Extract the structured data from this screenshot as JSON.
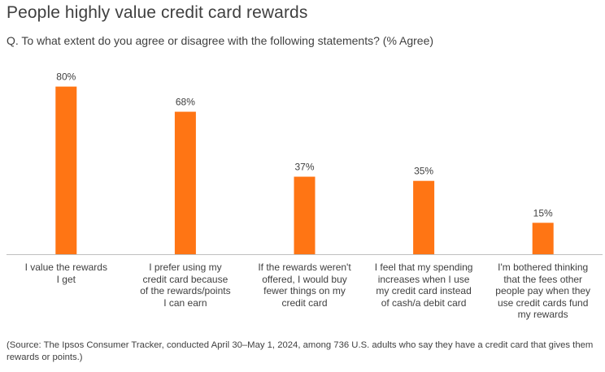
{
  "title": "People highly  value credit card rewards",
  "subtitle": "Q. To what extent do you agree or disagree with the following statements?  (% Agree)",
  "source": "(Source: The Ipsos Consumer Tracker, conducted April 30–May 1, 2024, among 736 U.S. adults who say they have a credit card that gives them rewards or points.)",
  "colors": {
    "bar": "#FF7514",
    "axis": "#bfbfbf",
    "text": "#404040"
  },
  "chart_data": {
    "type": "bar",
    "title": "People highly  value credit card rewards",
    "subtitle": "Q. To what extent do you agree or disagree with the following statements?  (% Agree)",
    "categories": [
      "I value the rewards I get",
      "I prefer using my credit card because of the rewards/points I can earn",
      "If the rewards weren't offered, I would buy fewer things on my credit card",
      "I feel that my spending increases when I use my credit card instead of cash/a debit card",
      "I'm bothered thinking that the fees other people pay when they use credit cards fund my rewards"
    ],
    "category_label_lines": [
      [
        "I value the rewards",
        "I get"
      ],
      [
        "I prefer using my",
        "credit card because",
        "of the rewards/points",
        "I can earn"
      ],
      [
        "If the rewards weren't",
        "offered, I would buy",
        "fewer things on my",
        "credit card"
      ],
      [
        "I feel that my spending",
        "increases when I use",
        "my credit card instead",
        "of cash/a debit card"
      ],
      [
        "I'm bothered thinking",
        "that the fees other",
        "people pay when they",
        "use credit cards fund",
        "my rewards"
      ]
    ],
    "values": [
      80,
      68,
      37,
      35,
      15
    ],
    "data_labels": [
      "80%",
      "68%",
      "37%",
      "35%",
      "15%"
    ],
    "xlabel": "",
    "ylabel": "",
    "ylim": [
      0,
      100
    ],
    "grid": false,
    "legend": "none"
  }
}
